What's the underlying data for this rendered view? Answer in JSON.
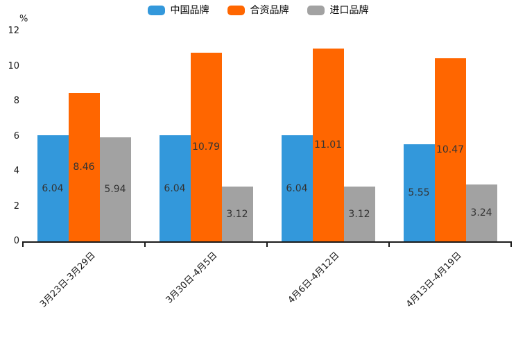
{
  "chart_data": {
    "type": "bar",
    "title": "",
    "xlabel": "",
    "ylabel": "%",
    "ylim": [
      0,
      12
    ],
    "yticks": [
      0,
      2,
      4,
      6,
      8,
      10,
      12
    ],
    "grid": false,
    "legend_position": "top",
    "categories": [
      "3月23日-3月29日",
      "3月30日-4月5日",
      "4月6日-4月12日",
      "4月13日-4月19日"
    ],
    "series": [
      {
        "name": "中国品牌",
        "color": "#3398DB",
        "values": [
          6.04,
          6.04,
          6.04,
          5.55
        ]
      },
      {
        "name": "合资品牌",
        "color": "#FF6600",
        "values": [
          8.46,
          10.79,
          11.01,
          10.47
        ]
      },
      {
        "name": "进口品牌",
        "color": "#A2A2A2",
        "values": [
          5.94,
          3.12,
          3.12,
          3.24
        ]
      }
    ],
    "data_label_color": "#333333",
    "axis_color": "#1a1a1a"
  }
}
